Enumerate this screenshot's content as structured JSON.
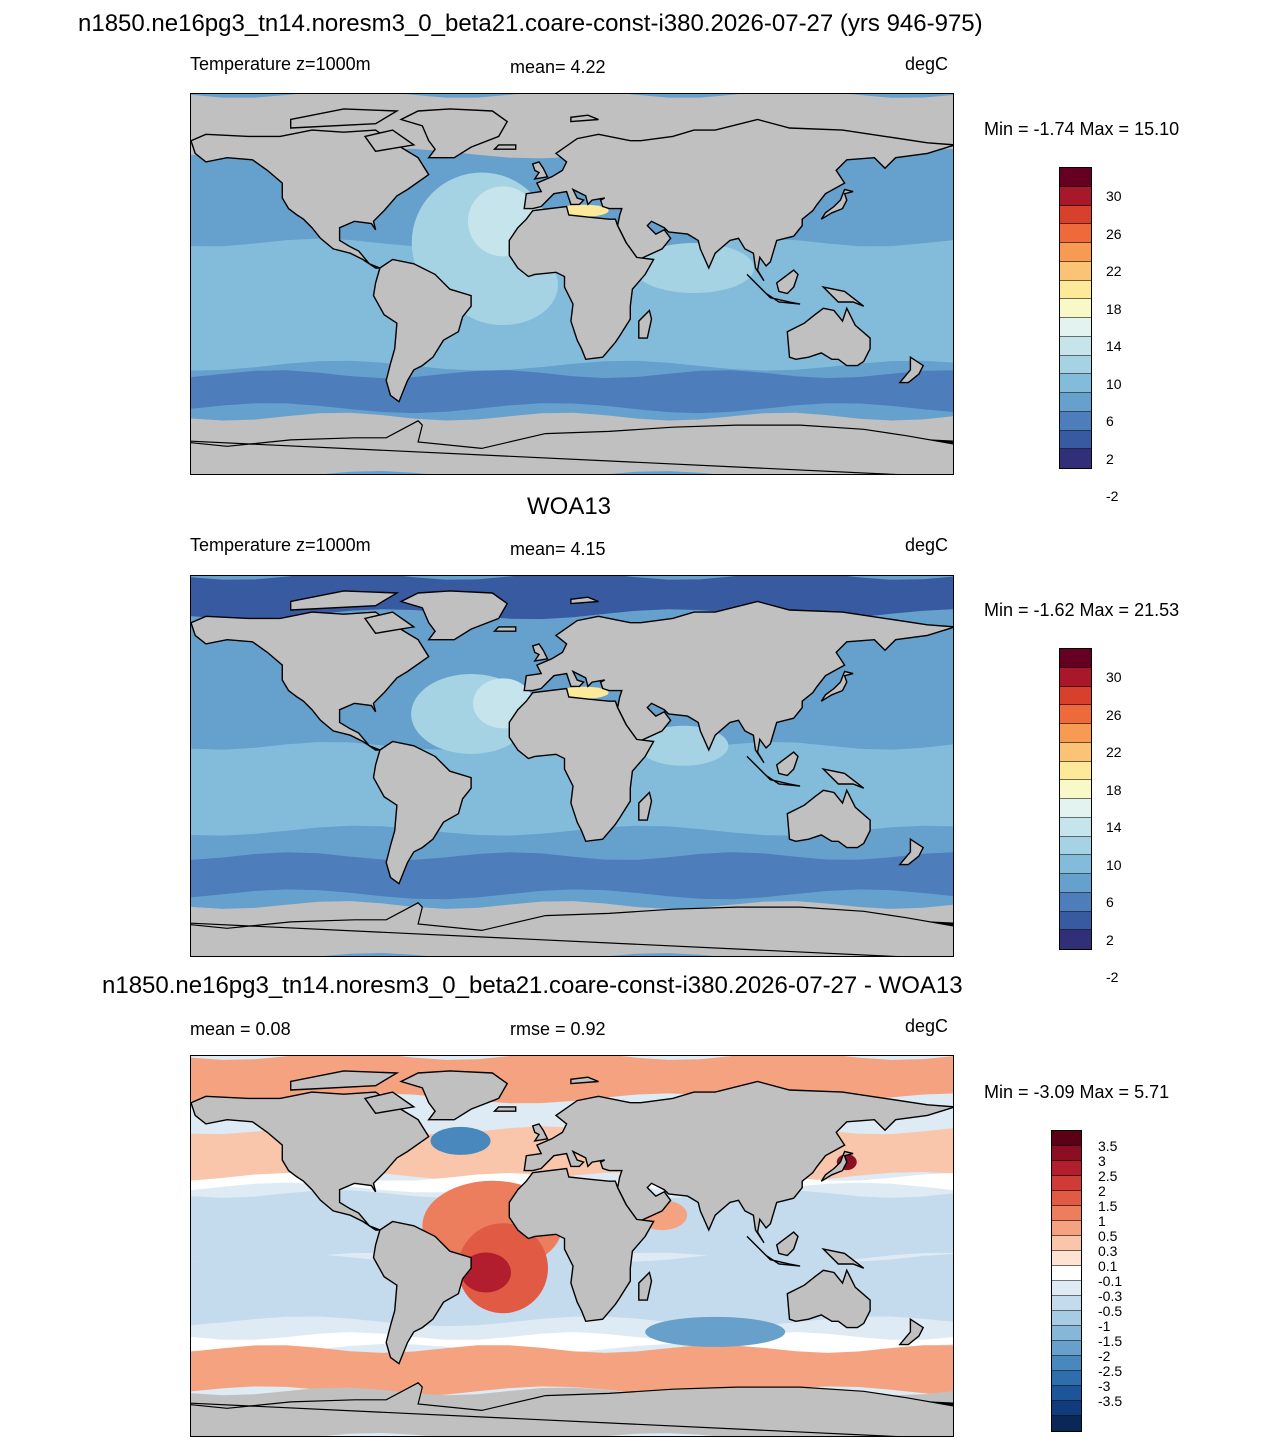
{
  "panel1": {
    "title": "n1850.ne16pg3_tn14.noresm3_0_beta21.coare-const-i380.2026-07-27 (yrs 946-975)",
    "variable": "Temperature z=1000m",
    "stat": "mean=   4.22",
    "units": "degC",
    "minmax": "Min =  -1.74 Max =  15.10",
    "colorbar": {
      "colors": [
        "#660022",
        "#a9182a",
        "#d7402b",
        "#ee6a3b",
        "#f89b52",
        "#fbc376",
        "#fde99a",
        "#f8f8c9",
        "#e3f3ef",
        "#c6e4eb",
        "#a5d3e4",
        "#83bcda",
        "#66a0cd",
        "#4d7dbb",
        "#385aa0",
        "#312f78"
      ],
      "labels": [
        "30",
        "26",
        "22",
        "18",
        "14",
        "10",
        "6",
        "2",
        "-2"
      ]
    }
  },
  "panel2": {
    "title": "WOA13",
    "variable": "Temperature z=1000m",
    "stat": "mean=   4.15",
    "units": "degC",
    "minmax": "Min =  -1.62 Max =  21.53",
    "colorbar": {
      "colors": [
        "#660022",
        "#a9182a",
        "#d7402b",
        "#ee6a3b",
        "#f89b52",
        "#fbc376",
        "#fde99a",
        "#f8f8c9",
        "#e3f3ef",
        "#c6e4eb",
        "#a5d3e4",
        "#83bcda",
        "#66a0cd",
        "#4d7dbb",
        "#385aa0",
        "#312f78"
      ],
      "labels": [
        "30",
        "26",
        "22",
        "18",
        "14",
        "10",
        "6",
        "2",
        "-2"
      ]
    }
  },
  "panel3": {
    "title": "n1850.ne16pg3_tn14.noresm3_0_beta21.coare-const-i380.2026-07-27 - WOA13",
    "mean": "mean =   0.08",
    "rmse": "rmse =   0.92",
    "units": "degC",
    "minmax": "Min =  -3.09 Max =   5.71",
    "colorbar": {
      "colors": [
        "#5c0016",
        "#8b0e23",
        "#b31e2e",
        "#cf3b36",
        "#e05a44",
        "#ec7d5d",
        "#f4a27f",
        "#f9c6ab",
        "#fde3d3",
        "#ffffff",
        "#deebf4",
        "#c3dbec",
        "#a6cbe2",
        "#86b7d8",
        "#66a0cb",
        "#4888bd",
        "#2f6eae",
        "#1d5599",
        "#103c7c",
        "#0a2857"
      ],
      "labels": [
        "3.5",
        "3",
        "2.5",
        "2",
        "1.5",
        "1",
        "0.5",
        "0.3",
        "0.1",
        "-0.1",
        "-0.3",
        "-0.5",
        "-1",
        "-1.5",
        "-2",
        "-2.5",
        "-3",
        "-3.5"
      ]
    }
  },
  "colors": {
    "land": "#c0c0c0",
    "coast": "#000000"
  }
}
